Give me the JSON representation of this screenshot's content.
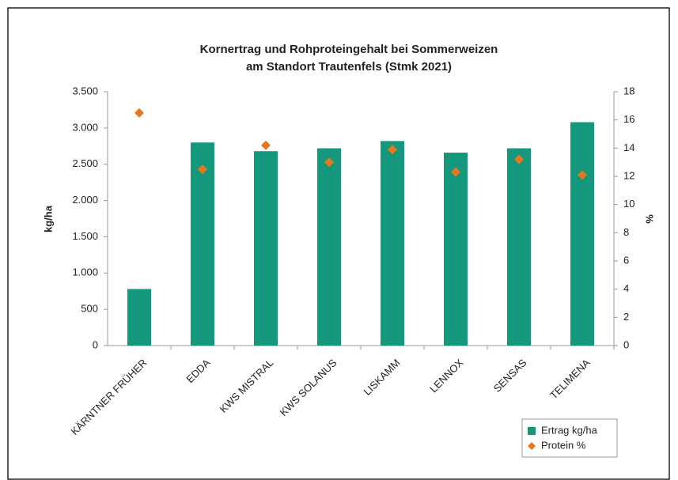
{
  "chart_data": {
    "type": "bar",
    "title": [
      "Kornertrag und Rohproteingehalt bei Sommerweizen",
      "am Standort Trautenfels (Stmk 2021)"
    ],
    "ylabel": "kg/ha",
    "y2label": "%",
    "categories": [
      "KÄRNTNER FRÜHER",
      "EDDA",
      "KWS MISTRAL",
      "KWS SOLANUS",
      "LISKAMM",
      "LENNOX",
      "SENSAS",
      "TELIMENA"
    ],
    "series": [
      {
        "name": "Ertrag kg/ha",
        "type": "bar",
        "color": "#15977b",
        "axis": "y",
        "values": [
          780,
          2800,
          2680,
          2720,
          2820,
          2660,
          2720,
          3080
        ]
      },
      {
        "name": "Protein %",
        "type": "scatter",
        "color": "#e8781f",
        "axis": "y2",
        "values": [
          16.5,
          12.5,
          14.2,
          13.0,
          13.9,
          12.3,
          13.2,
          12.1
        ]
      }
    ],
    "ylim": [
      0,
      3500
    ],
    "yticks": [
      0,
      500,
      {
        "value": 1000,
        "label": "1.000"
      },
      {
        "value": 1500,
        "label": "1.500"
      },
      {
        "value": 2000,
        "label": "2.000"
      },
      {
        "value": 2500,
        "label": "2.500"
      },
      {
        "value": 3000,
        "label": "3.000"
      },
      {
        "value": 3500,
        "label": "3.500"
      }
    ],
    "y2lim": [
      0,
      18
    ],
    "y2ticks": [
      0,
      2,
      4,
      6,
      8,
      10,
      12,
      14,
      16,
      18
    ],
    "grid": false,
    "legend": "bottom-right"
  }
}
